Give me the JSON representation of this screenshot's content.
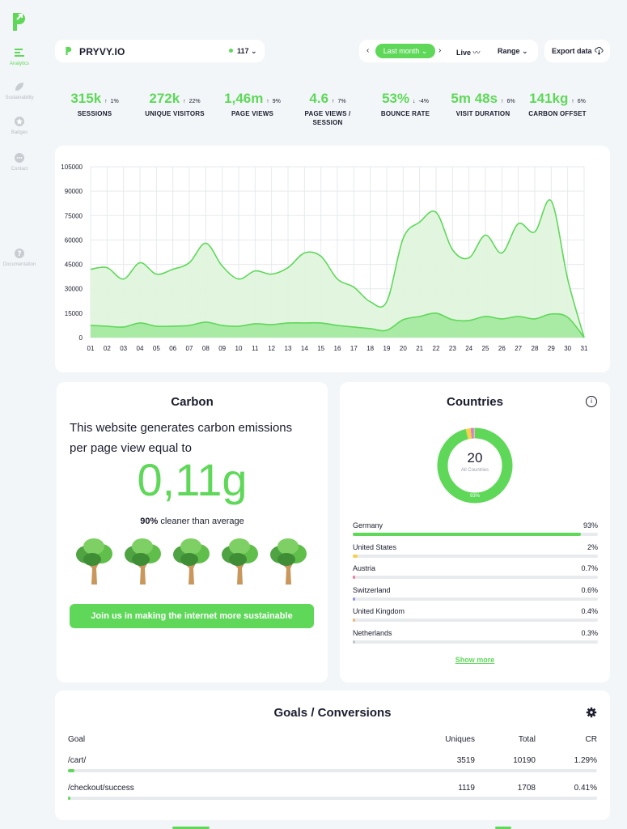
{
  "brand": {
    "accent": "#5fd85a",
    "text": "#1b1d2e"
  },
  "sidebar": {
    "items": [
      {
        "label": "Analytics",
        "icon": "bars-icon",
        "active": true
      },
      {
        "label": "Sustainability",
        "icon": "leaf-icon",
        "active": false
      },
      {
        "label": "Badges",
        "icon": "star-badge-icon",
        "active": false
      },
      {
        "label": "Contact",
        "icon": "chat-icon",
        "active": false
      },
      {
        "label": "Documentation",
        "icon": "question-icon",
        "active": false
      }
    ]
  },
  "header": {
    "site_name": "PRYVY.IO",
    "online_count": "117",
    "range_selected": "Last month",
    "live_label": "Live",
    "range_label": "Range",
    "export_label": "Export data"
  },
  "stats": [
    {
      "value": "315k",
      "direction": "up",
      "change": "1%",
      "label": "SESSIONS"
    },
    {
      "value": "272k",
      "direction": "up",
      "change": "22%",
      "label": "UNIQUE VISITORS"
    },
    {
      "value": "1,46m",
      "direction": "up",
      "change": "9%",
      "label": "PAGE VIEWS"
    },
    {
      "value": "4.6",
      "direction": "up",
      "change": "7%",
      "label": "PAGE VIEWS / SESSION"
    },
    {
      "value": "53%",
      "direction": "down",
      "change": "-4%",
      "label": "BOUNCE RATE"
    },
    {
      "value": "5m 48s",
      "direction": "up",
      "change": "6%",
      "label": "VISIT DURATION"
    },
    {
      "value": "141kg",
      "direction": "up",
      "change": "6%",
      "label": "CARBON OFFSET"
    }
  ],
  "chart_data": {
    "type": "area",
    "categories": [
      "01",
      "02",
      "03",
      "04",
      "05",
      "06",
      "07",
      "08",
      "09",
      "10",
      "11",
      "12",
      "13",
      "14",
      "15",
      "16",
      "17",
      "18",
      "19",
      "20",
      "21",
      "22",
      "23",
      "24",
      "25",
      "26",
      "27",
      "28",
      "29",
      "30",
      "31"
    ],
    "ylim": [
      0,
      105000
    ],
    "yticks": [
      "0",
      "15000",
      "30000",
      "45000",
      "60000",
      "75000",
      "90000",
      "105000"
    ],
    "grid": true,
    "series": [
      {
        "values": [
          42000,
          43000,
          36000,
          46000,
          39000,
          42000,
          46000,
          58000,
          44000,
          36000,
          41000,
          39000,
          43000,
          52000,
          50000,
          36000,
          31000,
          22000,
          22000,
          61000,
          71000,
          77000,
          54000,
          49000,
          63000,
          52000,
          70000,
          65000,
          84000,
          36000,
          0
        ]
      },
      {
        "values": [
          7500,
          7000,
          6500,
          9000,
          7000,
          7000,
          7500,
          9500,
          7500,
          7000,
          8500,
          8000,
          9000,
          9000,
          9000,
          7500,
          6500,
          5500,
          4500,
          11000,
          13000,
          15000,
          11000,
          10500,
          13000,
          11500,
          13000,
          11500,
          14500,
          12500,
          0
        ]
      }
    ]
  },
  "carbon": {
    "title": "Carbon",
    "description": "This website generates carbon emissions per page view equal to",
    "value": "0,11g",
    "cleaner_pct": "90%",
    "cleaner_text": " cleaner than average",
    "tree_count": 5,
    "cta": "Join us in making the internet more sustainable"
  },
  "countries": {
    "title": "Countries",
    "total": "20",
    "total_label": "All Countries",
    "donut_pct": "93%",
    "show_more": "Show more",
    "rows": [
      {
        "name": "Germany",
        "pct": "93%",
        "value": 93,
        "color": "#5fd85a"
      },
      {
        "name": "United States",
        "pct": "2%",
        "value": 2,
        "color": "#f3d34a"
      },
      {
        "name": "Austria",
        "pct": "0.7%",
        "value": 0.7,
        "color": "#f27aa0"
      },
      {
        "name": "Switzerland",
        "pct": "0.6%",
        "value": 0.6,
        "color": "#9b8cf0"
      },
      {
        "name": "United Kingdom",
        "pct": "0.4%",
        "value": 0.4,
        "color": "#f7b27a"
      },
      {
        "name": "Netherlands",
        "pct": "0.3%",
        "value": 0.3,
        "color": "#c3c7cd"
      }
    ]
  },
  "goals": {
    "title": "Goals / Conversions",
    "headers": {
      "goal": "Goal",
      "uniques": "Uniques",
      "total": "Total",
      "cr": "CR"
    },
    "rows": [
      {
        "goal": "/cart/",
        "uniques": "3519",
        "total": "10190",
        "cr": "1.29%",
        "fill": 1.29
      },
      {
        "goal": "/checkout/success",
        "uniques": "1119",
        "total": "1708",
        "cr": "0.41%",
        "fill": 0.41
      }
    ]
  }
}
